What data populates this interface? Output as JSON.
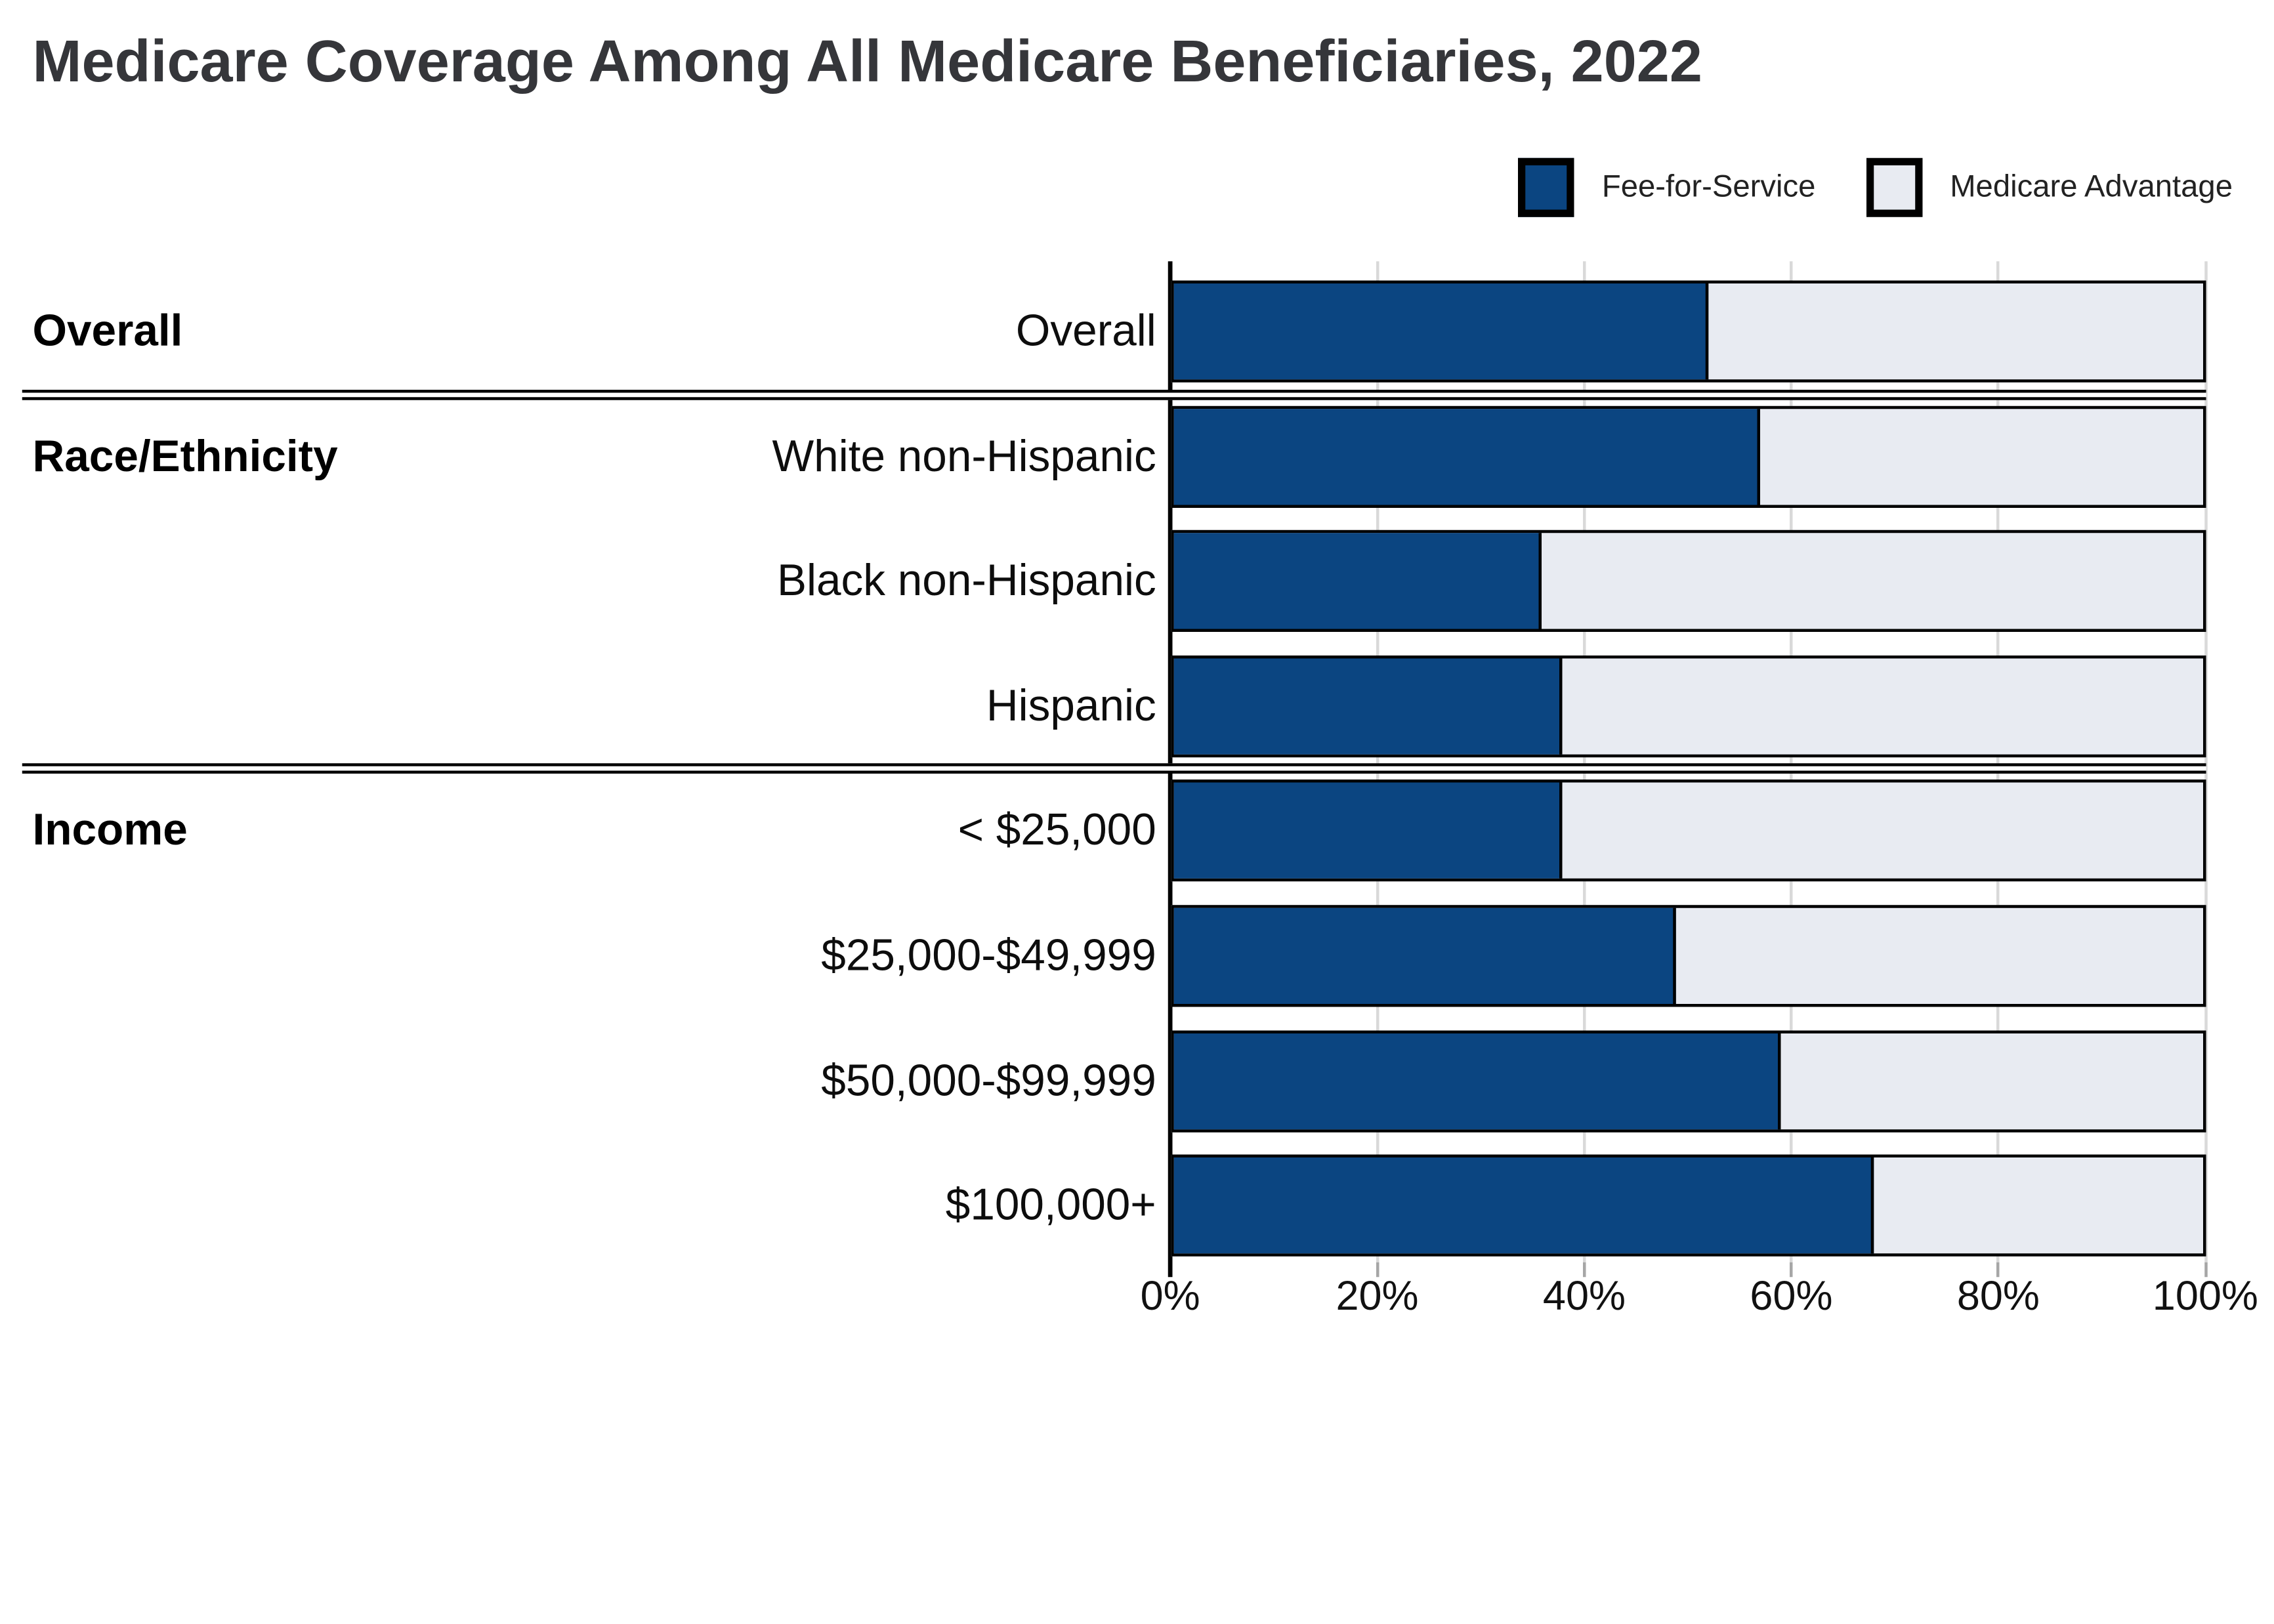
{
  "title": "Medicare Coverage Among All Medicare Beneficiaries, 2022",
  "legend": {
    "items": [
      {
        "label": "Fee-for-Service",
        "color": "#0b4581"
      },
      {
        "label": "Medicare Advantage",
        "color": "#e8ebf2"
      }
    ]
  },
  "colors": {
    "fee_for_service": "#0b4581",
    "medicare_advantage": "#e8ebf2",
    "bar_border": "#000000",
    "gridline": "#d9d9d9",
    "tick": "#a6a6a6",
    "axis": "#000000",
    "title_text": "#35363a",
    "label_text": "#0d0d0d"
  },
  "x_axis": {
    "tick_labels": [
      "0%",
      "20%",
      "40%",
      "60%",
      "80%",
      "100%"
    ],
    "min": 0,
    "max": 100
  },
  "chart_data": {
    "type": "bar",
    "stacked": true,
    "orientation": "horizontal",
    "unit": "percent of beneficiaries",
    "title": "Medicare Coverage Among All Medicare Beneficiaries, 2022",
    "series_names": [
      "Fee-for-Service",
      "Medicare Advantage"
    ],
    "xlim": [
      0,
      100
    ],
    "grid": true,
    "legend_position": "top-right",
    "groups": [
      {
        "group": "Overall",
        "rows": [
          {
            "category": "Overall",
            "fee_for_service": 52,
            "medicare_advantage": 48
          }
        ]
      },
      {
        "group": "Race/Ethnicity",
        "rows": [
          {
            "category": "White non-Hispanic",
            "fee_for_service": 57,
            "medicare_advantage": 43
          },
          {
            "category": "Black non-Hispanic",
            "fee_for_service": 36,
            "medicare_advantage": 64
          },
          {
            "category": "Hispanic",
            "fee_for_service": 38,
            "medicare_advantage": 62
          }
        ]
      },
      {
        "group": "Income",
        "rows": [
          {
            "category": "< $25,000",
            "fee_for_service": 38,
            "medicare_advantage": 62
          },
          {
            "category": "$25,000-$49,999",
            "fee_for_service": 49,
            "medicare_advantage": 51
          },
          {
            "category": "$50,000-$99,999",
            "fee_for_service": 59,
            "medicare_advantage": 41
          },
          {
            "category": "$100,000+",
            "fee_for_service": 68,
            "medicare_advantage": 32
          }
        ]
      }
    ]
  }
}
